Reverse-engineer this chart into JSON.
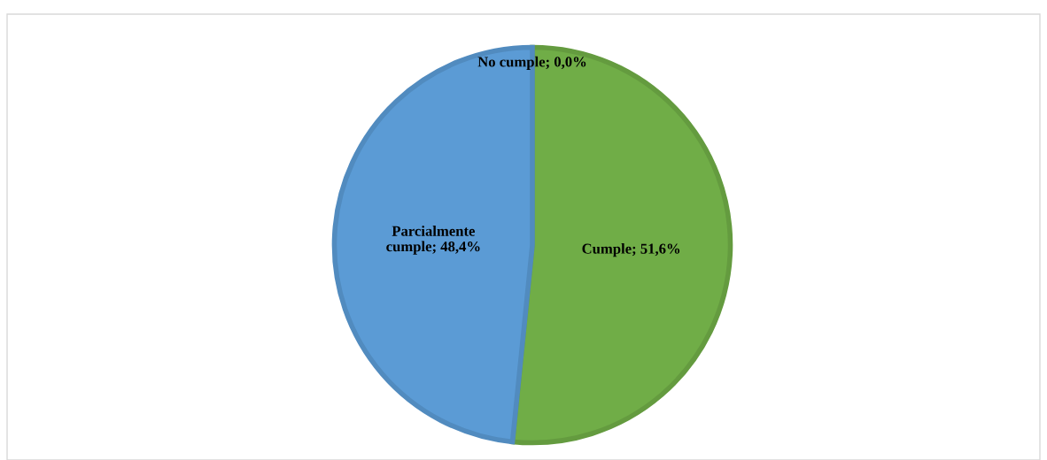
{
  "chart_data": {
    "type": "pie",
    "categories": [
      "No cumple; 0,0%",
      "Cumple; 51,6%",
      "Parcialmente cumple; 48,4%"
    ],
    "values": [
      0.0,
      51.6,
      48.4
    ],
    "colors": [
      "#a5a5a5",
      "#70ad47",
      "#5b9bd5"
    ],
    "legend": false
  }
}
